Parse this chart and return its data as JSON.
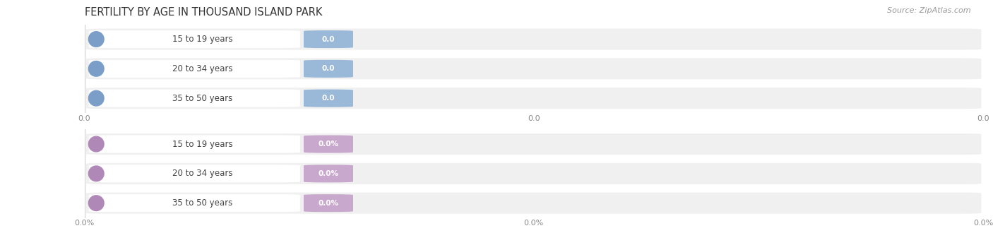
{
  "title": "FERTILITY BY AGE IN THOUSAND ISLAND PARK",
  "source": "Source: ZipAtlas.com",
  "top_labels": [
    "15 to 19 years",
    "20 to 34 years",
    "35 to 50 years"
  ],
  "bottom_labels": [
    "15 to 19 years",
    "20 to 34 years",
    "35 to 50 years"
  ],
  "top_value_labels": [
    "0.0",
    "0.0",
    "0.0"
  ],
  "bottom_value_labels": [
    "0.0%",
    "0.0%",
    "0.0%"
  ],
  "top_bar_color": "#9ab8d8",
  "top_bar_bg": "#dce8f4",
  "top_circle_color": "#7a9ec8",
  "bottom_bar_color": "#c8a8cc",
  "bottom_bar_bg": "#ece0ee",
  "bottom_circle_color": "#b088b8",
  "bar_bg_color": "#f0f0f0",
  "label_pill_color": "#ffffff",
  "label_color": "#444444",
  "title_color": "#333333",
  "source_color": "#999999",
  "background_color": "#ffffff",
  "xtick_labels_top": [
    "0.0",
    "0.0",
    "0.0"
  ],
  "xtick_labels_bottom": [
    "0.0%",
    "0.0%",
    "0.0%"
  ],
  "xtick_positions": [
    0.0,
    0.5,
    1.0
  ]
}
